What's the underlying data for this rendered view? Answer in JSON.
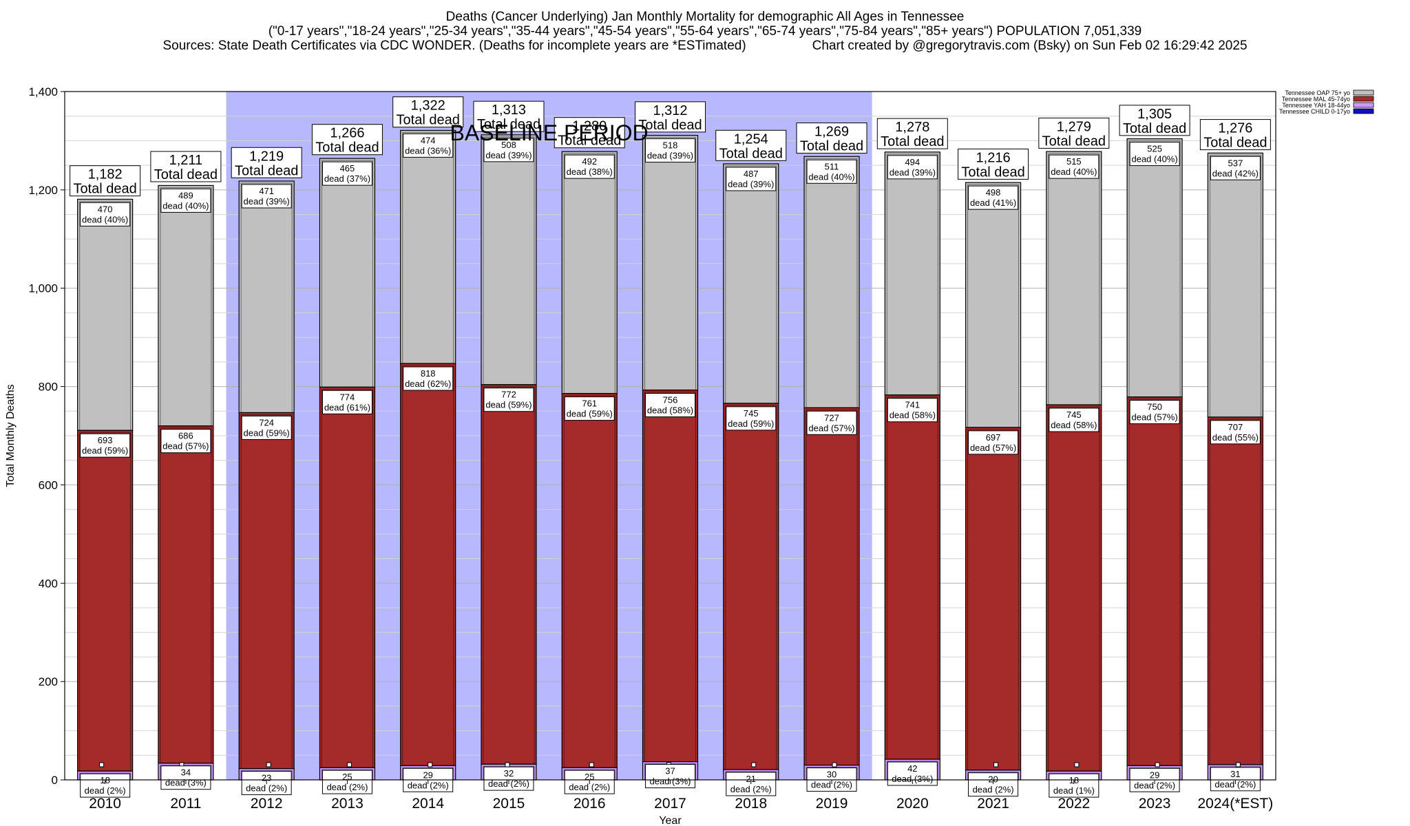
{
  "header": {
    "title": "Deaths (Cancer Underlying) Jan Monthly Mortality for demographic All Ages in Tennessee",
    "subtitle": "(\"0-17 years\",\"18-24 years\",\"25-34 years\",\"35-44 years\",\"45-54 years\",\"55-64 years\",\"65-74 years\",\"75-84 years\",\"85+ years\") POPULATION 7,051,339",
    "sources": "Sources: State Death Certificates via CDC WONDER. (Deaths for incomplete years are *ESTimated)",
    "credit": "Chart created by @gregorytravis.com (Bsky) on Sun Feb 02 16:29:42 2025"
  },
  "chart_data": {
    "type": "bar",
    "stacked": true,
    "categories": [
      "2010",
      "2011",
      "2012",
      "2013",
      "2014",
      "2015",
      "2016",
      "2017",
      "2018",
      "2019",
      "2020",
      "2021",
      "2022",
      "2023",
      "2024(*EST)"
    ],
    "xlabel": "Year",
    "ylabel": "Total Monthly Deaths",
    "ylim": [
      0,
      1400
    ],
    "yticks": [
      0,
      200,
      400,
      600,
      800,
      1000,
      1200,
      1400
    ],
    "ytick_labels": [
      "0",
      "200",
      "400",
      "600",
      "800",
      "1,000",
      "1,200",
      "1,400"
    ],
    "grid": true,
    "legend_position": "top-right",
    "baseline_period": {
      "label": "BASELINE PERIOD",
      "from": "2012",
      "to": "2019",
      "color": "#b8b8ff"
    },
    "total_label_suffix": "Total dead",
    "segment_label_suffix": "dead",
    "series": [
      {
        "name": "Tennessee CHILD 0-17yo",
        "color": "#1010c0",
        "values": [
          0,
          0,
          0,
          0,
          0,
          0,
          0,
          0,
          0,
          0,
          0,
          0,
          0,
          0,
          0
        ],
        "labels": [],
        "pcts": []
      },
      {
        "name": "Tennessee YAH 18-44yo",
        "color": "#cc99ff",
        "values": [
          18,
          34,
          23,
          25,
          29,
          32,
          25,
          37,
          21,
          30,
          42,
          20,
          18,
          29,
          31
        ],
        "labels": [
          "18",
          "34",
          "23",
          "25",
          "29",
          "32",
          "25",
          "37",
          "21",
          "30",
          "42",
          "20",
          "18",
          "29",
          "31"
        ],
        "pcts": [
          "(2%)",
          "(3%)",
          "(2%)",
          "(2%)",
          "(2%)",
          "(2%)",
          "(2%)",
          "(3%)",
          "(2%)",
          "(2%)",
          "(3%)",
          "(2%)",
          "(1%)",
          "(2%)",
          "(2%)"
        ]
      },
      {
        "name": "Tennessee MAL 45-74yo",
        "color": "#a52a2a",
        "values": [
          693,
          686,
          724,
          774,
          818,
          772,
          761,
          756,
          745,
          727,
          741,
          697,
          745,
          750,
          707
        ],
        "labels": [
          "693",
          "686",
          "724",
          "774",
          "818",
          "772",
          "761",
          "756",
          "745",
          "727",
          "741",
          "697",
          "745",
          "750",
          "707"
        ],
        "pcts": [
          "(59%)",
          "(57%)",
          "(59%)",
          "(61%)",
          "(62%)",
          "(59%)",
          "(59%)",
          "(58%)",
          "(59%)",
          "(57%)",
          "(58%)",
          "(57%)",
          "(58%)",
          "(57%)",
          "(55%)"
        ]
      },
      {
        "name": "Tennessee OAP 75+ yo",
        "color": "#c0c0c0",
        "values": [
          470,
          489,
          471,
          465,
          474,
          508,
          492,
          518,
          487,
          511,
          494,
          498,
          515,
          525,
          537
        ],
        "labels": [
          "470",
          "489",
          "471",
          "465",
          "474",
          "508",
          "492",
          "518",
          "487",
          "511",
          "494",
          "498",
          "515",
          "525",
          "537"
        ],
        "pcts": [
          "(40%)",
          "(40%)",
          "(39%)",
          "(37%)",
          "(36%)",
          "(39%)",
          "(38%)",
          "(39%)",
          "(39%)",
          "(40%)",
          "(39%)",
          "(41%)",
          "(40%)",
          "(40%)",
          "(42%)"
        ]
      }
    ],
    "totals": [
      1182,
      1211,
      1219,
      1266,
      1322,
      1313,
      1280,
      1312,
      1254,
      1269,
      1278,
      1216,
      1279,
      1305,
      1276
    ],
    "total_labels": [
      "1,182",
      "1,211",
      "1,219",
      "1,266",
      "1,322",
      "1,313",
      "1,280",
      "1,312",
      "1,254",
      "1,269",
      "1,278",
      "1,216",
      "1,279",
      "1,305",
      "1,276"
    ]
  }
}
